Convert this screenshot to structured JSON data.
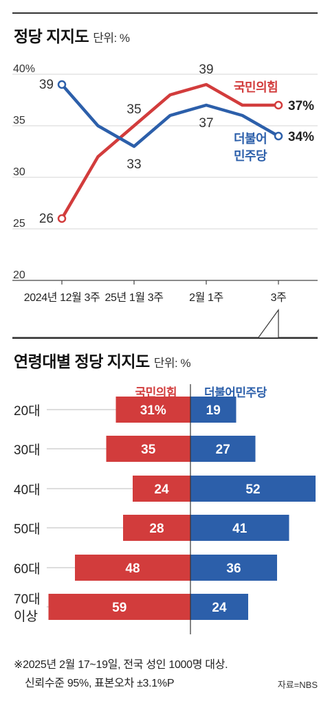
{
  "chart_data": [
    {
      "type": "line",
      "title": "정당 지지도",
      "unit": "단위: %",
      "ylim": [
        20,
        40
      ],
      "yticks": [
        "40%",
        "35",
        "30",
        "25",
        "20"
      ],
      "x_labels": [
        "2024년 12월 3주",
        "25년 1월 3주",
        "2월 1주",
        "3주"
      ],
      "x_positions": [
        0,
        2,
        4,
        6
      ],
      "grid": true,
      "series": [
        {
          "name": "국민의힘",
          "color": "#d23c3c",
          "x": [
            0,
            1,
            2,
            3,
            4,
            5,
            6
          ],
          "values": [
            26,
            32,
            35,
            38,
            39,
            37,
            37
          ],
          "labels": [
            {
              "x": 0,
              "text": "26"
            },
            {
              "x": 2,
              "text": "35"
            },
            {
              "x": 4,
              "text": "39"
            }
          ],
          "end_label": "37%"
        },
        {
          "name": "더불어민주당",
          "name_lines": [
            "더불어",
            "민주당"
          ],
          "color": "#2c5faa",
          "x": [
            0,
            1,
            2,
            3,
            4,
            5,
            6
          ],
          "values": [
            39,
            35,
            33,
            36,
            37,
            36,
            34
          ],
          "labels": [
            {
              "x": 0,
              "text": "39"
            },
            {
              "x": 2,
              "text": "33"
            },
            {
              "x": 4,
              "text": "37"
            }
          ],
          "end_label": "34%"
        }
      ]
    },
    {
      "type": "bar",
      "title": "연령대별 정당 지지도",
      "unit": "단위: %",
      "left_legend": "국민의힘",
      "right_legend": "더불어민주당",
      "left_color": "#d23c3c",
      "right_color": "#2c5faa",
      "categories": [
        [
          "20대"
        ],
        [
          "30대"
        ],
        [
          "40대"
        ],
        [
          "50대"
        ],
        [
          "60대"
        ],
        [
          "70대",
          "이상"
        ]
      ],
      "series": [
        {
          "name": "국민의힘",
          "values": [
            31,
            35,
            24,
            28,
            48,
            59
          ],
          "labels": [
            "31%",
            "35",
            "24",
            "28",
            "48",
            "59"
          ]
        },
        {
          "name": "더불어민주당",
          "values": [
            19,
            27,
            52,
            41,
            36,
            24
          ],
          "labels": [
            "19",
            "27",
            "52",
            "41",
            "36",
            "24"
          ]
        }
      ]
    }
  ],
  "footnote": {
    "line1": "※2025년 2월 17~19일, 전국 성인 1000명 대상.",
    "line2": "신뢰수준 95%, 표본오차 ±3.1%P"
  },
  "source": "자료=NBS"
}
